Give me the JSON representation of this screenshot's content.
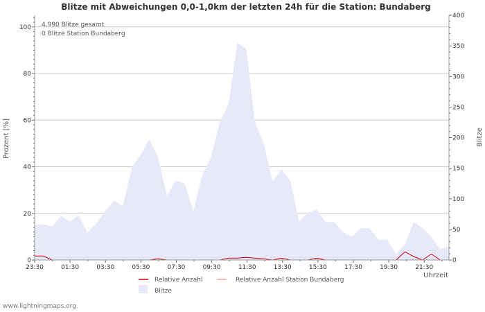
{
  "chart_data": {
    "type": "area",
    "title": "Blitze mit Abweichungen 0,0-1,0km der letzten 24h für die Station: Bundaberg",
    "annotations": [
      "4.990 Blitze gesamt",
      "0 Blitze Station Bundaberg"
    ],
    "ylabel_left": "Prozent   [%]",
    "ylabel_right": "Blitze",
    "xlabel": "Uhrzeit",
    "ylim_left": [
      0,
      105
    ],
    "ylim_right": [
      0,
      400
    ],
    "yticks_left": [
      "0",
      "20",
      "40",
      "60",
      "80",
      "100"
    ],
    "yticks_right": [
      "0",
      "50",
      "100",
      "150",
      "200",
      "250",
      "300",
      "350",
      "400"
    ],
    "x_tick_labels": [
      "23:30",
      "01:30",
      "03:30",
      "05:30",
      "07:30",
      "09:30",
      "11:30",
      "13:30",
      "15:30",
      "17:30",
      "19:30",
      "21:30"
    ],
    "grid": true,
    "series": [
      {
        "name": "Blitze",
        "axis": "right",
        "color": "#e8e8fb",
        "values": [
          58,
          58,
          55,
          72,
          63,
          73,
          45,
          60,
          80,
          97,
          88,
          150,
          172,
          197,
          168,
          105,
          130,
          125,
          80,
          138,
          168,
          225,
          255,
          355,
          345,
          225,
          190,
          128,
          148,
          130,
          63,
          77,
          83,
          62,
          62,
          45,
          38,
          52,
          52,
          33,
          33,
          10,
          25,
          62,
          52,
          38,
          18,
          22
        ]
      },
      {
        "name": "Relative Anzahl",
        "axis": "left",
        "color": "#cc0000",
        "values": [
          1.7,
          1.7,
          0,
          0,
          0,
          0,
          0,
          0,
          0,
          0,
          0,
          0,
          0,
          0,
          0.5,
          0,
          0,
          0,
          0,
          0,
          0,
          0,
          0.8,
          0.8,
          1.1,
          0.8,
          0.5,
          0,
          0.8,
          0,
          0,
          0,
          0.8,
          0,
          0,
          0,
          0,
          0,
          0,
          0,
          0,
          0,
          3.5,
          1.5,
          0,
          2.6,
          0,
          0
        ]
      },
      {
        "name": "Relative Anzahl Station Bundaberg",
        "axis": "left",
        "color": "#f4a582",
        "values": [
          0,
          0,
          0,
          0,
          0,
          0,
          0,
          0,
          0,
          0,
          0,
          0,
          0,
          0,
          0,
          0,
          0,
          0,
          0,
          0,
          0,
          0,
          0,
          0,
          0,
          0,
          0,
          0,
          0,
          0,
          0,
          0,
          0,
          0,
          0,
          0,
          0,
          0,
          0,
          0,
          0,
          0,
          0,
          0,
          0,
          0,
          0,
          0
        ]
      }
    ],
    "legend": [
      "Relative Anzahl",
      "Relative Anzahl Station Bundaberg",
      "Blitze"
    ],
    "legend_position": "bottom"
  },
  "footer": "www.lightningmaps.org"
}
